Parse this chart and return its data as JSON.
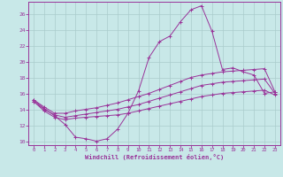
{
  "bg_color": "#c8e8e8",
  "grid_color": "#aacccc",
  "line_color": "#993399",
  "xlabel": "Windchill (Refroidissement éolien,°C)",
  "xlim": [
    -0.5,
    23.5
  ],
  "ylim": [
    9.5,
    27.5
  ],
  "xtick_labels": [
    "0",
    "1",
    "2",
    "3",
    "4",
    "5",
    "6",
    "7",
    "8",
    "9",
    "10",
    "11",
    "12",
    "13",
    "14",
    "15",
    "16",
    "17",
    "18",
    "19",
    "20",
    "21",
    "22",
    "23"
  ],
  "xticks": [
    0,
    1,
    2,
    3,
    4,
    5,
    6,
    7,
    8,
    9,
    10,
    11,
    12,
    13,
    14,
    15,
    16,
    17,
    18,
    19,
    20,
    21,
    22,
    23
  ],
  "yticks": [
    10,
    12,
    14,
    16,
    18,
    20,
    22,
    24,
    26
  ],
  "series": {
    "windchill": [
      15.2,
      14.1,
      13.2,
      12.1,
      10.5,
      10.3,
      10.0,
      10.3,
      11.5,
      13.5,
      16.3,
      20.5,
      22.5,
      23.2,
      25.0,
      26.5,
      27.0,
      23.8,
      19.0,
      19.2,
      18.7,
      18.3,
      16.0,
      16.2
    ],
    "tmax": [
      15.2,
      14.3,
      13.5,
      13.5,
      13.8,
      14.0,
      14.2,
      14.5,
      14.8,
      15.2,
      15.6,
      16.0,
      16.5,
      17.0,
      17.5,
      18.0,
      18.3,
      18.5,
      18.7,
      18.8,
      18.9,
      19.0,
      19.1,
      16.2
    ],
    "tmean": [
      15.0,
      14.0,
      13.3,
      13.0,
      13.2,
      13.4,
      13.6,
      13.8,
      14.0,
      14.3,
      14.6,
      15.0,
      15.4,
      15.8,
      16.2,
      16.6,
      17.0,
      17.2,
      17.4,
      17.5,
      17.6,
      17.7,
      17.8,
      16.0
    ],
    "tmin": [
      15.0,
      13.8,
      13.0,
      12.7,
      12.9,
      13.0,
      13.1,
      13.2,
      13.3,
      13.5,
      13.8,
      14.1,
      14.4,
      14.7,
      15.0,
      15.3,
      15.6,
      15.8,
      16.0,
      16.1,
      16.2,
      16.3,
      16.4,
      15.8
    ]
  }
}
